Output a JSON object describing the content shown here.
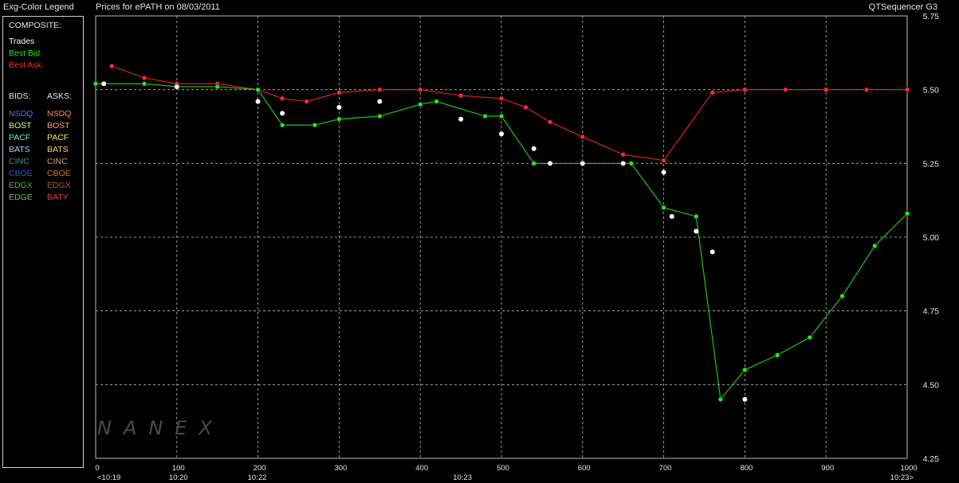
{
  "header": {
    "legend_title": "Exg-Color Legend",
    "chart_title": "Prices for  ePATH  on  08/03/2011",
    "app_name": "QTSequencer G3"
  },
  "legend": {
    "composite_label": "COMPOSITE:",
    "composite": [
      {
        "label": "Trades",
        "color": "#ffffff"
      },
      {
        "label": "Best Bid",
        "color": "#22e822"
      },
      {
        "label": "Best Ask",
        "color": "#ff2a2a"
      }
    ],
    "bids_label": "BIDS:",
    "asks_label": "ASKS:",
    "bids": [
      {
        "label": "NSDQ",
        "color": "#3a7cff"
      },
      {
        "label": "BOST",
        "color": "#c8ff7a"
      },
      {
        "label": "PACF",
        "color": "#5ff2d2"
      },
      {
        "label": "BATS",
        "color": "#9ad6ff"
      },
      {
        "label": "CINC",
        "color": "#3a9a8a"
      },
      {
        "label": "CBOE",
        "color": "#2a58c8"
      },
      {
        "label": "EDGX",
        "color": "#48b048"
      },
      {
        "label": "EDGE",
        "color": "#58c858"
      }
    ],
    "asks": [
      {
        "label": "NSDQ",
        "color": "#ff8a2a"
      },
      {
        "label": "BOST",
        "color": "#ff9a5a"
      },
      {
        "label": "PACF",
        "color": "#ffee44"
      },
      {
        "label": "BATS",
        "color": "#ffcc66"
      },
      {
        "label": "CINC",
        "color": "#c8a070"
      },
      {
        "label": "CBOE",
        "color": "#d07a20"
      },
      {
        "label": "EDGX",
        "color": "#b05a30"
      },
      {
        "label": "BATY",
        "color": "#e04020"
      }
    ]
  },
  "watermark": "NANEX",
  "chart_data": {
    "type": "line",
    "title": "Prices for  ePATH  on  08/03/2011",
    "x_range": [
      0,
      1000
    ],
    "y_range": [
      4.25,
      5.75
    ],
    "grid": true,
    "y_ticks": [
      "5.75",
      "5.50",
      "5.25",
      "5.00",
      "4.75",
      "4.50",
      "4.25"
    ],
    "y_tick_values": [
      5.75,
      5.5,
      5.25,
      5.0,
      4.75,
      4.5,
      4.25
    ],
    "x_ticks": [
      "0",
      "100",
      "200",
      "300",
      "400",
      "500",
      "600",
      "700",
      "800",
      "900",
      "1000"
    ],
    "x_tick_values": [
      0,
      100,
      200,
      300,
      400,
      500,
      600,
      700,
      800,
      900,
      1000
    ],
    "time_labels": [
      {
        "x": 0,
        "label": "<10:19"
      },
      {
        "x": 100,
        "label": "10:20"
      },
      {
        "x": 197,
        "label": "10:22"
      },
      {
        "x": 450,
        "label": "10:23"
      },
      {
        "x": 1000,
        "label": "10:23>"
      }
    ],
    "series": [
      {
        "name": "Best Ask",
        "color": "#ff2a2a",
        "x": [
          20,
          60,
          100,
          150,
          200,
          230,
          260,
          300,
          350,
          400,
          450,
          500,
          530,
          560,
          600,
          650,
          700,
          760,
          800,
          850,
          900,
          950,
          1000
        ],
        "y": [
          5.58,
          5.54,
          5.52,
          5.52,
          5.5,
          5.47,
          5.46,
          5.49,
          5.5,
          5.5,
          5.48,
          5.47,
          5.44,
          5.39,
          5.34,
          5.28,
          5.26,
          5.49,
          5.5,
          5.5,
          5.5,
          5.5,
          5.5
        ]
      },
      {
        "name": "Best Bid",
        "color": "#22e822",
        "x": [
          0,
          60,
          100,
          150,
          200,
          230,
          270,
          300,
          350,
          400,
          420,
          480,
          500,
          540,
          600,
          660,
          700,
          740,
          770,
          800,
          840,
          880,
          920,
          960,
          1000
        ],
        "y": [
          5.52,
          5.52,
          5.51,
          5.51,
          5.5,
          5.38,
          5.38,
          5.4,
          5.41,
          5.45,
          5.46,
          5.41,
          5.41,
          5.25,
          5.25,
          5.25,
          5.1,
          5.07,
          4.45,
          4.55,
          4.6,
          4.66,
          4.8,
          4.97,
          5.08
        ]
      },
      {
        "name": "Trades",
        "color": "#ffffff",
        "x": [
          10,
          100,
          200,
          230,
          300,
          350,
          450,
          500,
          540,
          560,
          600,
          650,
          700,
          710,
          740,
          760,
          800
        ],
        "y": [
          5.52,
          5.51,
          5.46,
          5.42,
          5.44,
          5.46,
          5.4,
          5.35,
          5.3,
          5.25,
          5.25,
          5.25,
          5.22,
          5.07,
          5.02,
          4.95,
          4.45
        ]
      }
    ]
  }
}
